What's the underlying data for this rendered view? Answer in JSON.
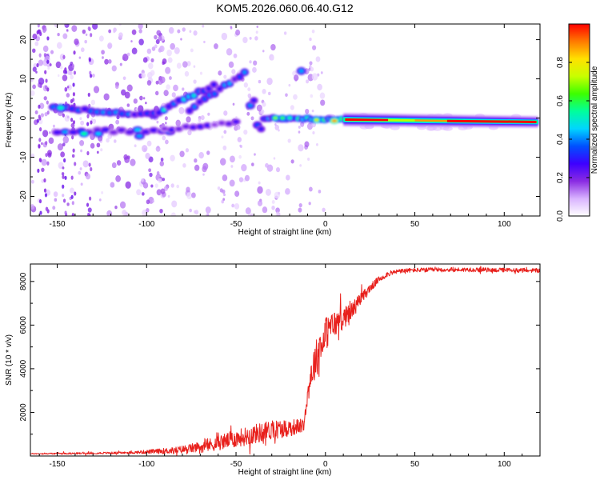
{
  "title": "KOM5.2026.060.06.40.G12",
  "chart_data": [
    {
      "type": "heatmap",
      "title": "KOM5.2026.060.06.40.G12",
      "xlabel": "Height of straight line (km)",
      "ylabel": "Frequency (Hz)",
      "xlim": [
        -165,
        120
      ],
      "ylim": [
        -25,
        24
      ],
      "x_ticks": [
        -150,
        -100,
        -50,
        0,
        50,
        100
      ],
      "y_ticks": [
        -20,
        -10,
        0,
        10,
        20
      ],
      "x_tick_labels": [
        "-150",
        "-100",
        "-50",
        "0",
        "50",
        "100"
      ],
      "y_tick_labels": [
        "-20",
        "-10",
        "0",
        "10",
        "20"
      ],
      "colorbar": {
        "label": "Normalized spectral amplitude",
        "range": [
          0.0,
          1.0
        ],
        "ticks": [
          0.0,
          0.2,
          0.4,
          0.6,
          0.8
        ],
        "tick_labels": [
          "0.0",
          "0.2",
          "0.4",
          "0.6",
          "0.8"
        ],
        "colors": [
          "#ffffff",
          "#d9b3ff",
          "#8a2be2",
          "#3d00ff",
          "#0050ff",
          "#00d5ff",
          "#00ff9c",
          "#3cff00",
          "#c8ff00",
          "#ffe100",
          "#ff7a00",
          "#ff0000"
        ]
      },
      "features": [
        {
          "name": "main branch (left)",
          "x_from": -150,
          "x_to": -95,
          "y_from": 3,
          "y_to": 1,
          "amplitude": 0.3
        },
        {
          "name": "lower branch",
          "x_from": -150,
          "x_to": -85,
          "y_from": -3,
          "y_to": -3.5,
          "amplitude": 0.25
        },
        {
          "name": "rising branch 1",
          "x_from": -95,
          "x_to": -60,
          "y_from": 1,
          "y_to": 9,
          "amplitude": 0.35
        },
        {
          "name": "rising branch 2",
          "x_from": -75,
          "x_to": -45,
          "y_from": 2,
          "y_to": 12,
          "amplitude": 0.3
        },
        {
          "name": "isolated spot",
          "x_from": -14,
          "x_to": -13,
          "y_from": 12,
          "y_to": 12,
          "amplitude": 0.35
        },
        {
          "name": "trace center",
          "x_from": -40,
          "x_to": 10,
          "y_from": 0,
          "y_to": -0.5,
          "amplitude": 0.5
        },
        {
          "name": "strong line",
          "x_from": 10,
          "x_to": 120,
          "y_from": -0.5,
          "y_to": -1,
          "amplitude": 1.0
        }
      ]
    },
    {
      "type": "line",
      "xlabel": "Height of straight line (km)",
      "ylabel": "SNR (10 * v/v)",
      "xlim": [
        -165,
        120
      ],
      "ylim": [
        0,
        8800
      ],
      "x_ticks": [
        -150,
        -100,
        -50,
        0,
        50,
        100
      ],
      "y_ticks": [
        2000,
        4000,
        6000,
        8000
      ],
      "x_tick_labels": [
        "-150",
        "-100",
        "-50",
        "0",
        "50",
        "100"
      ],
      "y_tick_labels": [
        "2000",
        "4000",
        "6000",
        "8000"
      ],
      "line_color": "#e8201c",
      "series": [
        {
          "name": "SNR",
          "x": [
            -165,
            -140,
            -110,
            -85,
            -70,
            -60,
            -50,
            -40,
            -30,
            -20,
            -12,
            -10,
            -8,
            -5,
            -2,
            0,
            3,
            6,
            10,
            15,
            20,
            25,
            30,
            35,
            40,
            45,
            50,
            60,
            70,
            80,
            90,
            100,
            110,
            120
          ],
          "y": [
            100,
            120,
            150,
            250,
            400,
            600,
            800,
            1000,
            1200,
            1300,
            1400,
            2800,
            3800,
            4500,
            5200,
            5600,
            5900,
            6100,
            6300,
            6700,
            7200,
            7700,
            8100,
            8350,
            8450,
            8500,
            8520,
            8530,
            8540,
            8540,
            8530,
            8520,
            8510,
            8500
          ],
          "noise": [
            30,
            40,
            50,
            150,
            250,
            350,
            400,
            450,
            450,
            400,
            300,
            400,
            800,
            900,
            900,
            800,
            700,
            600,
            500,
            400,
            300,
            200,
            150,
            120,
            100,
            100,
            100,
            100,
            100,
            100,
            100,
            100,
            100,
            100
          ]
        }
      ]
    }
  ]
}
